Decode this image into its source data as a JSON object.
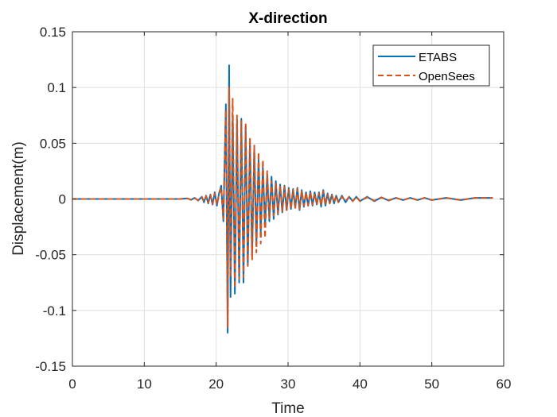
{
  "chart_data": {
    "type": "line",
    "title": "X-direction",
    "xlabel": "Time",
    "ylabel": "Displacement(m)",
    "xlim": [
      0,
      60
    ],
    "ylim": [
      -0.15,
      0.15
    ],
    "xticks": [
      0,
      10,
      20,
      30,
      40,
      50,
      60
    ],
    "xtick_labels": [
      "0",
      "10",
      "20",
      "30",
      "40",
      "50",
      "60"
    ],
    "yticks": [
      -0.15,
      -0.1,
      -0.05,
      0,
      0.05,
      0.1,
      0.15
    ],
    "ytick_labels": [
      "-0.15",
      "-0.1",
      "-0.05",
      "0",
      "0.05",
      "0.1",
      "0.15"
    ],
    "grid": true,
    "legend_position": "top-right",
    "series": [
      {
        "name": "ETABS",
        "color": "#0072BD",
        "style": "solid",
        "x": [
          0,
          5,
          10,
          15,
          16.0,
          16.5,
          17.0,
          17.5,
          18.0,
          18.3,
          18.6,
          18.9,
          19.2,
          19.5,
          19.8,
          20.1,
          20.4,
          20.7,
          21.0,
          21.35,
          21.6,
          21.8,
          22.0,
          22.3,
          22.6,
          22.9,
          23.2,
          23.5,
          23.8,
          24.1,
          24.4,
          24.7,
          25.0,
          25.3,
          25.6,
          25.9,
          26.2,
          26.5,
          26.8,
          27.1,
          27.4,
          27.7,
          28.0,
          28.3,
          28.6,
          28.9,
          29.2,
          29.5,
          29.8,
          30.1,
          30.4,
          30.7,
          31.0,
          31.3,
          31.6,
          31.9,
          32.2,
          32.5,
          32.8,
          33.1,
          33.4,
          33.7,
          34.0,
          34.3,
          34.6,
          34.9,
          35.2,
          35.5,
          35.8,
          36.1,
          36.4,
          36.7,
          37.0,
          37.5,
          38.0,
          38.5,
          39.0,
          39.5,
          40.0,
          41,
          42,
          43,
          44,
          45,
          46,
          47,
          48,
          49,
          50,
          52,
          54,
          56,
          58.5
        ],
        "values": [
          0,
          0,
          0,
          0,
          0.0005,
          -0.0008,
          0.001,
          -0.0015,
          0.002,
          -0.003,
          0.003,
          -0.004,
          0.004,
          -0.005,
          0.006,
          -0.006,
          0.005,
          0.012,
          -0.02,
          0.085,
          -0.12,
          0.12,
          -0.088,
          0.075,
          -0.085,
          0.07,
          -0.075,
          0.072,
          -0.075,
          0.065,
          -0.06,
          0.052,
          -0.05,
          0.045,
          -0.04,
          0.035,
          -0.03,
          0.028,
          -0.024,
          0.022,
          -0.02,
          0.02,
          -0.018,
          0.016,
          -0.014,
          0.013,
          -0.012,
          0.012,
          -0.01,
          0.01,
          -0.009,
          0.009,
          -0.008,
          0.01,
          -0.01,
          0.008,
          -0.007,
          0.006,
          -0.006,
          0.007,
          -0.006,
          0.006,
          -0.005,
          0.006,
          -0.007,
          0.008,
          -0.006,
          0.005,
          -0.004,
          0.004,
          -0.004,
          0.003,
          -0.003,
          0.003,
          -0.003,
          0.002,
          -0.002,
          0.002,
          -0.002,
          0.002,
          -0.002,
          0.0015,
          -0.0015,
          0.001,
          -0.001,
          0.001,
          -0.001,
          0.001,
          -0.001,
          0.001,
          -0.001,
          0.001,
          0.001
        ]
      },
      {
        "name": "OpenSees",
        "color": "#D95319",
        "style": "dashed",
        "x": [
          0,
          5,
          10,
          15,
          16.0,
          16.5,
          17.0,
          17.5,
          18.0,
          18.3,
          18.6,
          18.9,
          19.2,
          19.5,
          19.8,
          20.1,
          20.4,
          20.7,
          21.0,
          21.35,
          21.6,
          21.8,
          22.0,
          22.3,
          22.6,
          22.9,
          23.2,
          23.5,
          23.8,
          24.1,
          24.4,
          24.7,
          25.0,
          25.3,
          25.6,
          25.9,
          26.2,
          26.5,
          26.8,
          27.1,
          27.4,
          27.7,
          28.0,
          28.3,
          28.6,
          28.9,
          29.2,
          29.5,
          29.8,
          30.1,
          30.4,
          30.7,
          31.0,
          31.3,
          31.6,
          31.9,
          32.2,
          32.5,
          32.8,
          33.1,
          33.4,
          33.7,
          34.0,
          34.3,
          34.6,
          34.9,
          35.2,
          35.5,
          35.8,
          36.1,
          36.4,
          36.7,
          37.0,
          37.5,
          38.0,
          38.5,
          39.0,
          39.5,
          40.0,
          41,
          42,
          43,
          44,
          45,
          46,
          47,
          48,
          49,
          50,
          52,
          54,
          56,
          58.5
        ],
        "values": [
          0,
          0,
          0,
          0,
          0.0004,
          -0.0006,
          0.0008,
          -0.0012,
          0.0018,
          -0.0025,
          0.0025,
          -0.0035,
          0.0035,
          -0.0045,
          0.005,
          -0.005,
          0.004,
          0.01,
          -0.018,
          0.08,
          -0.115,
          0.1,
          -0.07,
          0.09,
          -0.08,
          0.075,
          -0.072,
          0.07,
          -0.07,
          0.068,
          -0.06,
          0.055,
          -0.055,
          0.048,
          -0.048,
          0.042,
          -0.04,
          0.035,
          -0.035,
          0.025,
          -0.018,
          0.016,
          -0.015,
          0.014,
          -0.013,
          0.012,
          -0.011,
          0.011,
          -0.01,
          0.009,
          -0.009,
          0.008,
          -0.008,
          0.009,
          -0.009,
          0.007,
          -0.006,
          0.006,
          -0.006,
          0.006,
          -0.005,
          0.005,
          -0.005,
          0.005,
          -0.006,
          0.007,
          -0.005,
          0.004,
          -0.004,
          0.003,
          -0.003,
          0.003,
          -0.003,
          0.002,
          -0.002,
          0.002,
          -0.002,
          0.002,
          -0.002,
          0.0015,
          -0.0015,
          0.0012,
          -0.0012,
          0.001,
          -0.001,
          0.001,
          -0.001,
          0.001,
          -0.001,
          0.001,
          -0.001,
          0.001,
          0.001
        ]
      }
    ]
  }
}
